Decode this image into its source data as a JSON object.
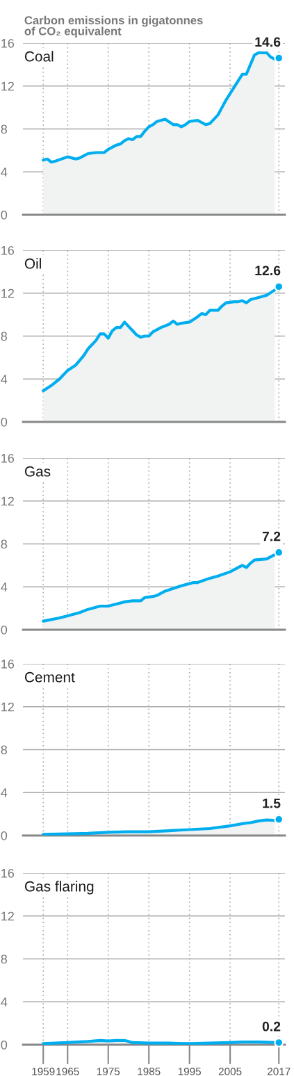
{
  "chart_data": [
    {
      "type": "area",
      "title": "Coal",
      "ylabel": "Carbon emissions in gigatonnes\nof CO₂ equivalent",
      "xlim": [
        1954,
        2018.5
      ],
      "ylim": [
        0,
        16
      ],
      "xticks": [
        1959,
        1965,
        1975,
        1985,
        1995,
        2005,
        2017
      ],
      "yticks": [
        0,
        4,
        8,
        12,
        16
      ],
      "grid": true,
      "legend": false,
      "tick_labels": "y",
      "series": [
        {
          "color": "#00aeef",
          "marker": "none",
          "x": [
            1959,
            1960,
            1961,
            1962,
            1965,
            1967,
            1968,
            1970,
            1972,
            1974,
            1975,
            1977,
            1978,
            1979,
            1980,
            1981,
            1982,
            1983,
            1984,
            1985,
            1986,
            1987,
            1989,
            1991,
            1992,
            1993,
            1994,
            1995,
            1997,
            1998,
            1999,
            2000,
            2001,
            2002,
            2003,
            2004,
            2005,
            2006,
            2007,
            2008,
            2009,
            2010,
            2011,
            2012,
            2014,
            2015,
            2016
          ],
          "values": [
            5.1,
            5.2,
            4.9,
            5.0,
            5.4,
            5.2,
            5.3,
            5.7,
            5.8,
            5.8,
            6.1,
            6.5,
            6.6,
            6.9,
            7.1,
            7.0,
            7.3,
            7.3,
            7.8,
            8.2,
            8.4,
            8.7,
            8.9,
            8.4,
            8.4,
            8.2,
            8.4,
            8.7,
            8.8,
            8.6,
            8.4,
            8.5,
            8.9,
            9.3,
            10.0,
            10.7,
            11.3,
            11.9,
            12.5,
            13.1,
            13.1,
            14.0,
            14.9,
            15.1,
            15.1,
            14.7,
            14.5
          ]
        },
        {
          "type": "scatter",
          "color": "#00aeef",
          "marker": "circle",
          "x": [
            2017
          ],
          "values": [
            14.6
          ],
          "value_labels": [
            "14.6"
          ]
        }
      ]
    },
    {
      "type": "area",
      "title": "Oil",
      "xlim": [
        1954,
        2018.5
      ],
      "ylim": [
        0,
        16
      ],
      "xticks": [
        1959,
        1965,
        1975,
        1985,
        1995,
        2005,
        2017
      ],
      "yticks": [
        0,
        4,
        8,
        12,
        16
      ],
      "grid": true,
      "legend": false,
      "tick_labels": "y",
      "series": [
        {
          "color": "#00aeef",
          "marker": "none",
          "x": [
            1959,
            1961,
            1963,
            1965,
            1967,
            1969,
            1970,
            1972,
            1973,
            1974,
            1975,
            1976,
            1977,
            1978,
            1979,
            1981,
            1982,
            1983,
            1984,
            1985,
            1986,
            1988,
            1990,
            1991,
            1992,
            1993,
            1995,
            1997,
            1998,
            1999,
            2000,
            2002,
            2003,
            2004,
            2006,
            2007,
            2008,
            2009,
            2010,
            2012,
            2014,
            2016
          ],
          "values": [
            2.9,
            3.4,
            4.0,
            4.8,
            5.3,
            6.2,
            6.8,
            7.6,
            8.2,
            8.2,
            7.8,
            8.5,
            8.8,
            8.8,
            9.3,
            8.5,
            8.1,
            7.9,
            8.0,
            8.0,
            8.4,
            8.8,
            9.1,
            9.4,
            9.1,
            9.2,
            9.3,
            9.8,
            10.1,
            10.0,
            10.4,
            10.4,
            10.8,
            11.1,
            11.2,
            11.2,
            11.3,
            11.1,
            11.4,
            11.6,
            11.8,
            12.3
          ]
        },
        {
          "type": "scatter",
          "color": "#00aeef",
          "marker": "circle",
          "x": [
            2017
          ],
          "values": [
            12.6
          ],
          "value_labels": [
            "12.6"
          ]
        }
      ]
    },
    {
      "type": "area",
      "title": "Gas",
      "xlim": [
        1954,
        2018.5
      ],
      "ylim": [
        0,
        16
      ],
      "xticks": [
        1959,
        1965,
        1975,
        1985,
        1995,
        2005,
        2017
      ],
      "yticks": [
        0,
        4,
        8,
        12,
        16
      ],
      "grid": true,
      "legend": false,
      "tick_labels": "y",
      "series": [
        {
          "color": "#00aeef",
          "marker": "none",
          "x": [
            1959,
            1963,
            1965,
            1968,
            1970,
            1973,
            1975,
            1978,
            1979,
            1981,
            1982,
            1983,
            1984,
            1986,
            1987,
            1989,
            1993,
            1995,
            1996,
            1997,
            2000,
            2002,
            2005,
            2007,
            2008,
            2009,
            2010,
            2011,
            2014,
            2016
          ],
          "values": [
            0.8,
            1.1,
            1.3,
            1.6,
            1.9,
            2.2,
            2.2,
            2.5,
            2.6,
            2.7,
            2.7,
            2.7,
            3.0,
            3.1,
            3.2,
            3.6,
            4.1,
            4.3,
            4.4,
            4.4,
            4.8,
            5.0,
            5.4,
            5.8,
            6.0,
            5.8,
            6.2,
            6.5,
            6.6,
            7.0
          ]
        },
        {
          "type": "scatter",
          "color": "#00aeef",
          "marker": "circle",
          "x": [
            2017
          ],
          "values": [
            7.2
          ],
          "value_labels": [
            "7.2"
          ]
        }
      ]
    },
    {
      "type": "area",
      "title": "Cement",
      "xlim": [
        1954,
        2018.5
      ],
      "ylim": [
        0,
        16
      ],
      "xticks": [
        1959,
        1965,
        1975,
        1985,
        1995,
        2005,
        2017
      ],
      "yticks": [
        0,
        4,
        8,
        12,
        16
      ],
      "grid": true,
      "legend": false,
      "tick_labels": "y",
      "series": [
        {
          "color": "#00aeef",
          "marker": "none",
          "x": [
            1959,
            1965,
            1970,
            1975,
            1980,
            1985,
            1990,
            1995,
            2000,
            2005,
            2008,
            2010,
            2012,
            2014,
            2016
          ],
          "values": [
            0.1,
            0.15,
            0.2,
            0.3,
            0.35,
            0.35,
            0.45,
            0.55,
            0.65,
            0.9,
            1.1,
            1.2,
            1.35,
            1.45,
            1.4
          ]
        },
        {
          "type": "scatter",
          "color": "#00aeef",
          "marker": "circle",
          "x": [
            2017
          ],
          "values": [
            1.5
          ],
          "value_labels": [
            "1.5"
          ]
        }
      ]
    },
    {
      "type": "area",
      "title": "Gas flaring",
      "xlim": [
        1954,
        2018.5
      ],
      "ylim": [
        0,
        16
      ],
      "xticks": [
        1959,
        1965,
        1975,
        1985,
        1995,
        2005,
        2017
      ],
      "yticks": [
        0,
        4,
        8,
        12,
        16
      ],
      "grid": true,
      "legend": false,
      "series": [
        {
          "color": "#00aeef",
          "marker": "none",
          "x": [
            1959,
            1965,
            1970,
            1973,
            1975,
            1977,
            1979,
            1981,
            1985,
            1990,
            1995,
            2000,
            2005,
            2008,
            2012,
            2016
          ],
          "values": [
            0.1,
            0.2,
            0.3,
            0.4,
            0.35,
            0.4,
            0.4,
            0.2,
            0.15,
            0.15,
            0.1,
            0.15,
            0.2,
            0.25,
            0.25,
            0.2
          ]
        },
        {
          "type": "scatter",
          "color": "#00aeef",
          "marker": "circle",
          "x": [
            2017
          ],
          "values": [
            0.2
          ],
          "value_labels": [
            "0.2"
          ]
        }
      ]
    }
  ]
}
